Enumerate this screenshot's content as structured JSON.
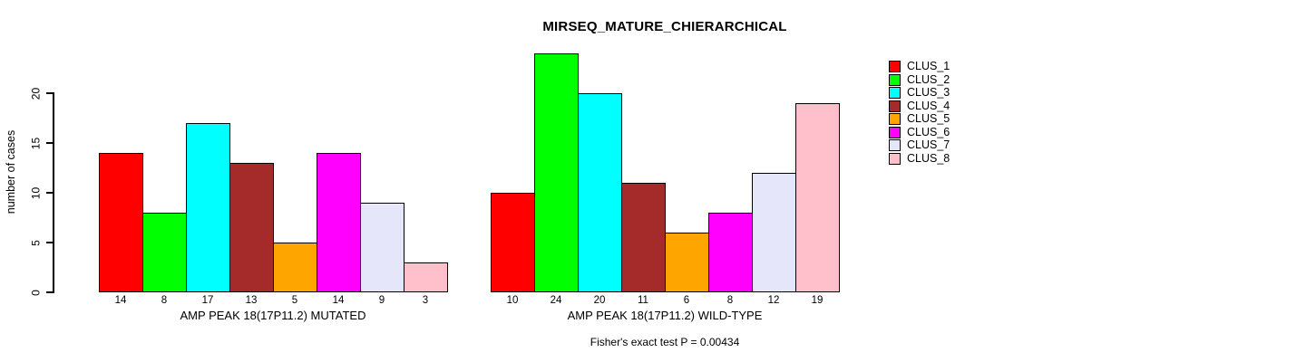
{
  "title": "MIRSEQ_MATURE_CHIERARCHICAL",
  "annotation": "Fisher's exact test P = 0.00434",
  "y_axis": {
    "label": "number of cases",
    "ticks": [
      0,
      5,
      10,
      15,
      20
    ]
  },
  "legend": {
    "position": "right",
    "items": [
      {
        "label": "CLUS_1",
        "color": "#FF0000"
      },
      {
        "label": "CLUS_2",
        "color": "#00FF00"
      },
      {
        "label": "CLUS_3",
        "color": "#00FFFF"
      },
      {
        "label": "CLUS_4",
        "color": "#A52A2A"
      },
      {
        "label": "CLUS_5",
        "color": "#FFA500"
      },
      {
        "label": "CLUS_6",
        "color": "#FF00FF"
      },
      {
        "label": "CLUS_7",
        "color": "#E6E6FA"
      },
      {
        "label": "CLUS_8",
        "color": "#FFC0CB"
      }
    ]
  },
  "chart_data": [
    {
      "type": "bar",
      "title": "MIRSEQ_MATURE_CHIERARCHICAL",
      "xlabel": "AMP PEAK 18(17P11.2) MUTATED",
      "ylabel": "number of cases",
      "categories": [
        "CLUS_1",
        "CLUS_2",
        "CLUS_3",
        "CLUS_4",
        "CLUS_5",
        "CLUS_6",
        "CLUS_7",
        "CLUS_8"
      ],
      "values": [
        14,
        8,
        17,
        13,
        5,
        14,
        9,
        3
      ],
      "bar_labels": [
        "14",
        "8",
        "17",
        "13",
        "5",
        "14",
        "9",
        "3"
      ],
      "colors": [
        "#FF0000",
        "#00FF00",
        "#00FFFF",
        "#A52A2A",
        "#FFA500",
        "#FF00FF",
        "#E6E6FA",
        "#FFC0CB"
      ],
      "ylim": [
        0,
        24
      ],
      "yticks": [
        0,
        5,
        10,
        15,
        20
      ],
      "grid": false,
      "legend_position": "right"
    },
    {
      "type": "bar",
      "title": "MIRSEQ_MATURE_CHIERARCHICAL",
      "xlabel": "AMP PEAK 18(17P11.2) WILD-TYPE",
      "ylabel": "number of cases",
      "categories": [
        "CLUS_1",
        "CLUS_2",
        "CLUS_3",
        "CLUS_4",
        "CLUS_5",
        "CLUS_6",
        "CLUS_7",
        "CLUS_8"
      ],
      "values": [
        10,
        24,
        20,
        11,
        6,
        8,
        12,
        19
      ],
      "bar_labels": [
        "10",
        "24",
        "20",
        "11",
        "6",
        "8",
        "12",
        "19"
      ],
      "colors": [
        "#FF0000",
        "#00FF00",
        "#00FFFF",
        "#A52A2A",
        "#FFA500",
        "#FF00FF",
        "#E6E6FA",
        "#FFC0CB"
      ],
      "ylim": [
        0,
        24
      ],
      "yticks": [
        0,
        5,
        10,
        15,
        20
      ],
      "grid": false,
      "legend_position": "right"
    }
  ]
}
